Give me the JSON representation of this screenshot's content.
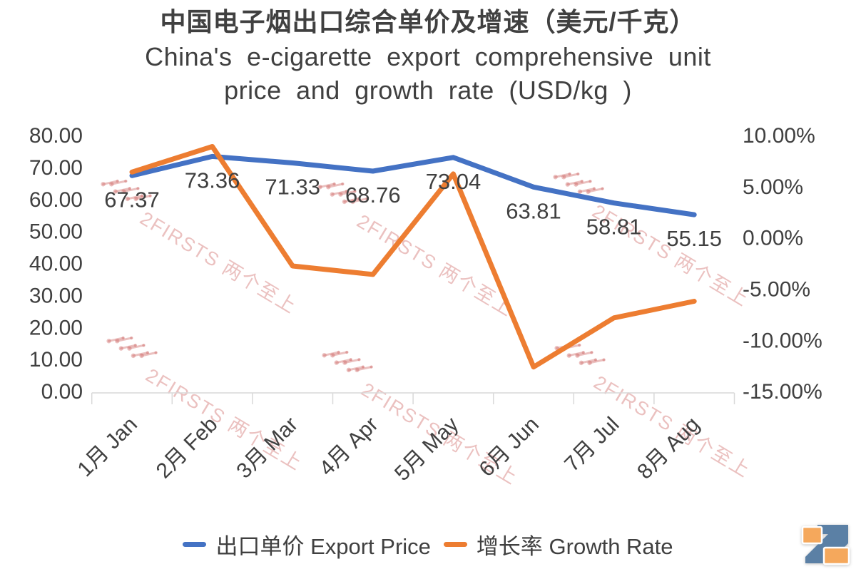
{
  "title": {
    "zh": "中国电子烟出口综合单价及增速（美元/千克）",
    "en_line1": "China's e-cigarette export comprehensive unit",
    "en_line2": "price and growth rate (USD/kg )"
  },
  "watermark": {
    "text": "2FIRSTS 两个至上"
  },
  "brand": {
    "name": "2FIRSTS",
    "orange": "#F5A85C",
    "blue": "#5B80A5"
  },
  "chart_data": {
    "type": "line",
    "title": "中国电子烟出口综合单价及增速（美元/千克） China's e-cigarette export comprehensive unit price and growth rate (USD/kg )",
    "categories": [
      "1月 Jan",
      "2月 Feb",
      "3月 Mar",
      "4月 Apr",
      "5月 May",
      "6月 Jun",
      "7月 Jul",
      "8月 Aug"
    ],
    "series": [
      {
        "key": "export_price",
        "name": "出口单价 Export Price",
        "axis": "left",
        "color": "#4472C4",
        "values": [
          67.37,
          73.36,
          71.33,
          68.76,
          73.04,
          63.81,
          58.81,
          55.15
        ],
        "labels": [
          "67.37",
          "73.36",
          "71.33",
          "68.76",
          "73.04",
          "63.81",
          "58.81",
          "55.15"
        ]
      },
      {
        "key": "growth_rate",
        "name": "增长率 Growth Rate",
        "axis": "right",
        "color": "#ED7D31",
        "values": [
          6.4,
          8.89,
          -2.77,
          -3.6,
          6.22,
          -12.64,
          -7.84,
          -6.22
        ],
        "estimated_from_plot": true
      }
    ],
    "left_axis": {
      "min": 0,
      "max": 80,
      "ticks": [
        "80.00",
        "70.00",
        "60.00",
        "50.00",
        "40.00",
        "30.00",
        "20.00",
        "10.00",
        "0.00"
      ]
    },
    "right_axis": {
      "min": -15,
      "max": 10,
      "ticks": [
        "10.00%",
        "5.00%",
        "0.00%",
        "-5.00%",
        "-10.00%",
        "-15.00%"
      ]
    },
    "grid": false,
    "legend_position": "bottom"
  }
}
